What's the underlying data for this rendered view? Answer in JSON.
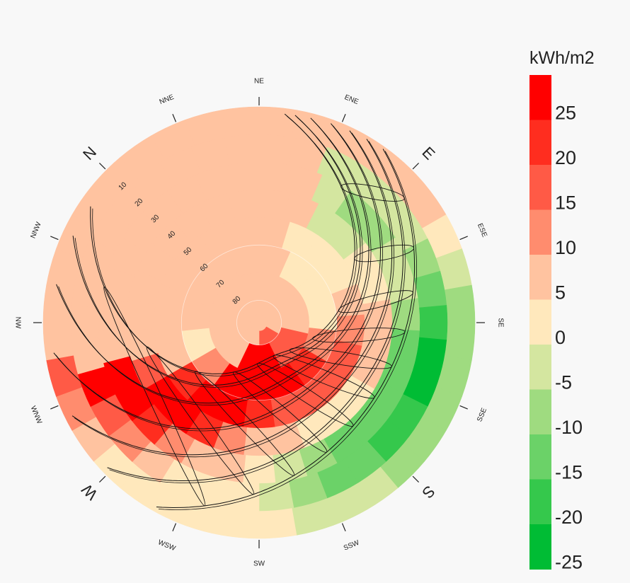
{
  "chart_data": {
    "type": "heatmap",
    "projection": "polar sky dome (radiation rose with sun-path overlay)",
    "title": "",
    "legend": {
      "title": "kWh/m2",
      "placement": "right",
      "bins": [
        {
          "min": 25,
          "max": 30,
          "color": "#ff0000"
        },
        {
          "min": 20,
          "max": 25,
          "color": "#ff2d1f"
        },
        {
          "min": 15,
          "max": 20,
          "color": "#ff5a46"
        },
        {
          "min": 10,
          "max": 15,
          "color": "#ff8c6e"
        },
        {
          "min": 5,
          "max": 10,
          "color": "#ffc3a0"
        },
        {
          "min": 0,
          "max": 5,
          "color": "#ffe8bc"
        },
        {
          "min": -5,
          "max": 0,
          "color": "#d4e6a0"
        },
        {
          "min": -10,
          "max": -5,
          "color": "#9fdb80"
        },
        {
          "min": -15,
          "max": -10,
          "color": "#6bd268"
        },
        {
          "min": -20,
          "max": -15,
          "color": "#35c84c"
        },
        {
          "min": -25,
          "max": -20,
          "color": "#00bc34"
        }
      ],
      "tick_labels": [
        "25",
        "20",
        "15",
        "10",
        "5",
        "0",
        "-5",
        "-10",
        "-15",
        "-20",
        "-25"
      ]
    },
    "direction_labels": [
      {
        "label": "N",
        "major": true
      },
      {
        "label": "NNE",
        "major": false
      },
      {
        "label": "NE",
        "major": false
      },
      {
        "label": "ENE",
        "major": false
      },
      {
        "label": "E",
        "major": true
      },
      {
        "label": "ESE",
        "major": false
      },
      {
        "label": "SE",
        "major": false
      },
      {
        "label": "SSE",
        "major": false
      },
      {
        "label": "S",
        "major": true
      },
      {
        "label": "SSW",
        "major": false
      },
      {
        "label": "SW",
        "major": false
      },
      {
        "label": "WSW",
        "major": false
      },
      {
        "label": "W",
        "major": true
      },
      {
        "label": "WNW",
        "major": false
      },
      {
        "label": "NW",
        "major": false
      },
      {
        "label": "NNW",
        "major": false
      }
    ],
    "altitude_labels": [
      "10",
      "20",
      "30",
      "40",
      "50",
      "60",
      "70",
      "80"
    ],
    "altitude_ticks_deg": [
      10,
      20,
      30,
      40,
      50,
      60,
      70,
      80
    ],
    "sun_path": {
      "summer_peak_altitude_deg": 78,
      "summer_peak_bearing_deg": 202,
      "winter_peak_altitude_deg": 34,
      "winter_peak_bearing_deg": 168,
      "hourly_markers": 11
    }
  }
}
